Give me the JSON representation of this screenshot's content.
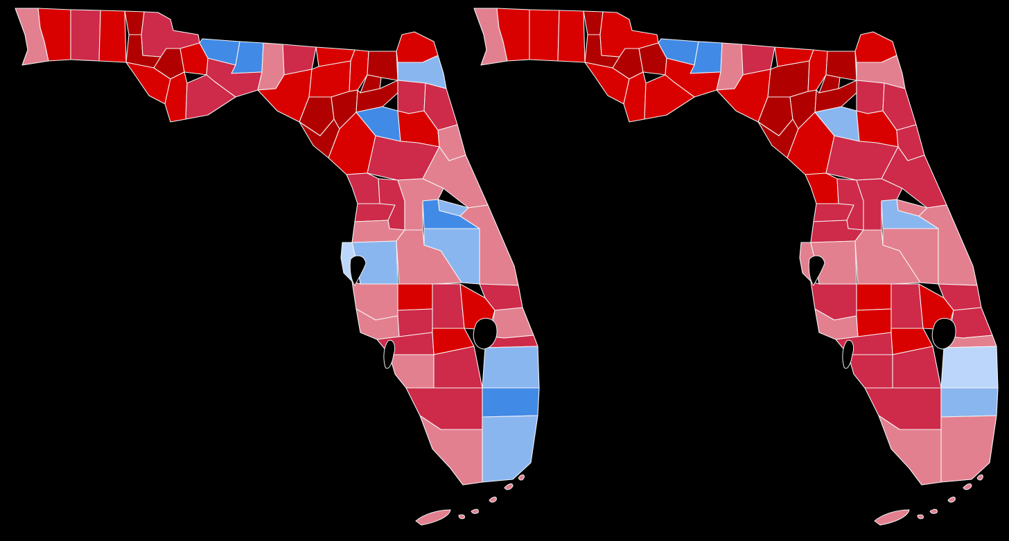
{
  "palette": {
    "R3": "#b10000",
    "R2": "#d90000",
    "R1": "#ce2a49",
    "R0": "#e3808f",
    "D0": "#bcd6fb",
    "D1": "#8ab6f0",
    "D2": "#418ae6"
  },
  "maps": [
    {
      "name": "left-map",
      "counties": {
        "escambia": "R0",
        "santarosa": "R2",
        "okaloosa": "R1",
        "walton": "R2",
        "holmes": "R3",
        "washington": "R3",
        "jackson": "R1",
        "bay": "R2",
        "calhoun": "R3",
        "gulf": "R2",
        "liberty": "R2",
        "franklin": "R1",
        "gadsden": "D2",
        "leon": "D2",
        "wakulla": "R1",
        "jefferson": "R0",
        "madison": "R1",
        "taylor": "R2",
        "hamilton": "R2",
        "suwannee": "R2",
        "lafayette": "R3",
        "dixie": "R3",
        "columbia": "R2",
        "gilchrist": "R3",
        "levy": "R2",
        "baker": "R3",
        "union": "R3",
        "bradford": "R3",
        "alachua": "D2",
        "nassau": "R2",
        "duval": "D1",
        "clay": "R1",
        "stjohns": "R1",
        "putnam": "R2",
        "flagler": "R0",
        "marion": "R1",
        "volusia": "R0",
        "citrus": "R1",
        "hernando": "R1",
        "sumter": "R1",
        "lake": "R0",
        "seminole": "D1",
        "orange": "D2",
        "osceola": "D1",
        "brevard": "R0",
        "pasco": "R0",
        "pinellas": "D0",
        "hillsborough": "D1",
        "polk": "R0",
        "indianriver": "R1",
        "manatee": "R0",
        "hardee": "R2",
        "highlands": "R1",
        "okeechobee": "R2",
        "stlucie": "R0",
        "martin": "R1",
        "sarasota": "R0",
        "desoto": "R1",
        "charlotte": "R1",
        "glades": "R2",
        "palmbeach": "D1",
        "lee": "R0",
        "hendry": "R1",
        "collier": "R1",
        "broward": "D2",
        "miamidade": "D1",
        "monroe": "R0"
      }
    },
    {
      "name": "right-map",
      "counties": {
        "escambia": "R0",
        "santarosa": "R2",
        "okaloosa": "R2",
        "walton": "R2",
        "holmes": "R3",
        "washington": "R3",
        "jackson": "R2",
        "bay": "R2",
        "calhoun": "R3",
        "gulf": "R2",
        "liberty": "R3",
        "franklin": "R2",
        "gadsden": "D2",
        "leon": "D2",
        "wakulla": "R2",
        "jefferson": "R0",
        "madison": "R1",
        "taylor": "R2",
        "hamilton": "R2",
        "suwannee": "R3",
        "lafayette": "R3",
        "dixie": "R3",
        "columbia": "R2",
        "gilchrist": "R3",
        "levy": "R2",
        "baker": "R3",
        "union": "R3",
        "bradford": "R3",
        "alachua": "D1",
        "nassau": "R2",
        "duval": "R0",
        "clay": "R1",
        "stjohns": "R1",
        "putnam": "R2",
        "flagler": "R1",
        "marion": "R1",
        "volusia": "R1",
        "citrus": "R2",
        "hernando": "R1",
        "sumter": "R1",
        "lake": "R1",
        "seminole": "R0",
        "orange": "D1",
        "osceola": "R0",
        "brevard": "R0",
        "pasco": "R1",
        "pinellas": "R0",
        "hillsborough": "R0",
        "polk": "R0",
        "indianriver": "R1",
        "manatee": "R1",
        "hardee": "R2",
        "highlands": "R1",
        "okeechobee": "R2",
        "stlucie": "R1",
        "martin": "R0",
        "sarasota": "R0",
        "desoto": "R2",
        "charlotte": "R1",
        "glades": "R2",
        "palmbeach": "D0",
        "lee": "R1",
        "hendry": "R1",
        "collier": "R1",
        "broward": "D1",
        "miamidade": "R0",
        "monroe": "R0"
      }
    }
  ]
}
